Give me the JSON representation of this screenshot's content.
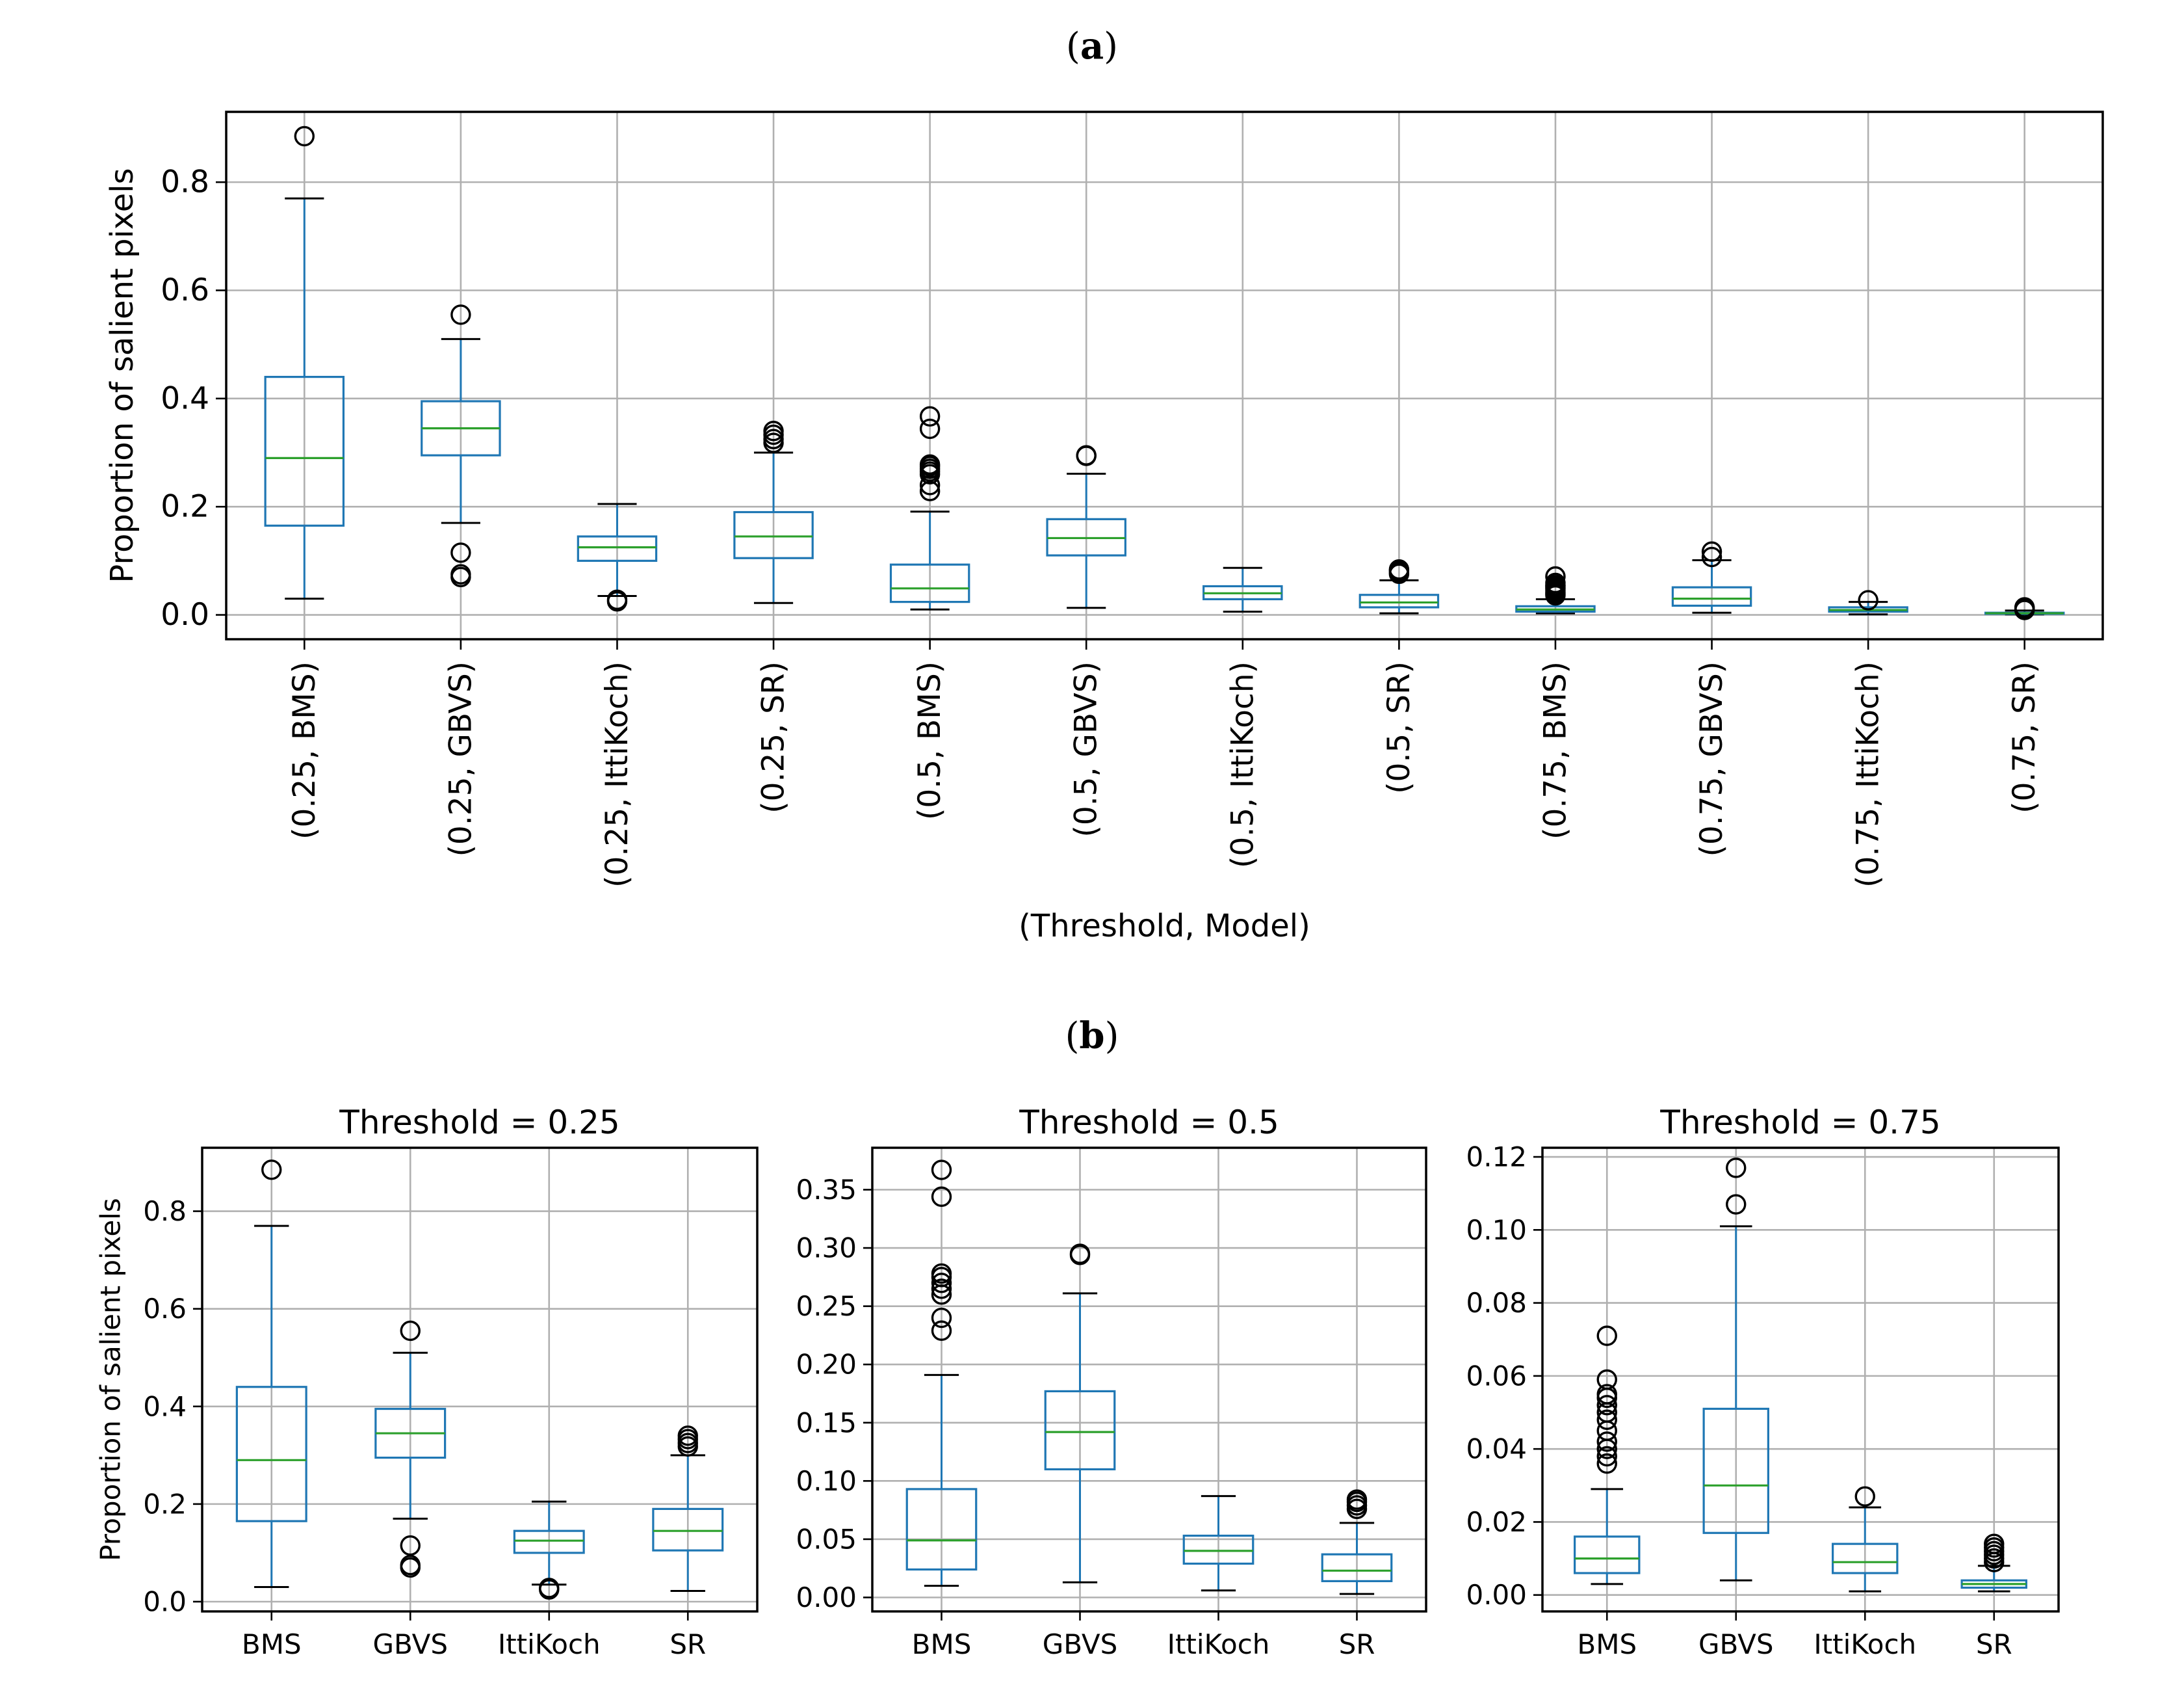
{
  "figure": {
    "panel_a_prefix": "(",
    "panel_a_letter": "a",
    "panel_a_suffix": ")",
    "panel_b_prefix": "(",
    "panel_b_letter": "b",
    "panel_b_suffix": ")"
  },
  "colors": {
    "box": "#1f77b4",
    "median": "#2ca02c",
    "grid": "#b0b0b0",
    "axis": "#000000"
  },
  "chart_data": [
    {
      "type": "boxplot",
      "panel": "a",
      "title": "",
      "xlabel": "(Threshold, Model)",
      "ylabel": "Proportion of salient pixels",
      "ylim": [
        -0.045,
        0.93
      ],
      "yticks": [
        0.0,
        0.2,
        0.4,
        0.6,
        0.8
      ],
      "ytick_labels": [
        "0.0",
        "0.2",
        "0.4",
        "0.6",
        "0.8"
      ],
      "grid": true,
      "categories": [
        "(0.25, BMS)",
        "(0.25, GBVS)",
        "(0.25, IttiKoch)",
        "(0.25, SR)",
        "(0.5, BMS)",
        "(0.5, GBVS)",
        "(0.5, IttiKoch)",
        "(0.5, SR)",
        "(0.75, BMS)",
        "(0.75, GBVS)",
        "(0.75, IttiKoch)",
        "(0.75, SR)"
      ],
      "boxes": [
        {
          "whislo": 0.03,
          "q1": 0.165,
          "med": 0.29,
          "q3": 0.44,
          "whishi": 0.77,
          "fliers": [
            0.885
          ]
        },
        {
          "whislo": 0.17,
          "q1": 0.295,
          "med": 0.345,
          "q3": 0.395,
          "whishi": 0.51,
          "fliers": [
            0.555,
            0.115,
            0.07,
            0.075
          ]
        },
        {
          "whislo": 0.035,
          "q1": 0.1,
          "med": 0.125,
          "q3": 0.145,
          "whishi": 0.205,
          "fliers": [
            0.025,
            0.028
          ]
        },
        {
          "whislo": 0.022,
          "q1": 0.105,
          "med": 0.145,
          "q3": 0.19,
          "whishi": 0.3,
          "fliers": [
            0.318,
            0.325,
            0.333,
            0.34
          ]
        },
        {
          "whislo": 0.01,
          "q1": 0.024,
          "med": 0.049,
          "q3": 0.093,
          "whishi": 0.191,
          "fliers": [
            0.229,
            0.24,
            0.26,
            0.265,
            0.27,
            0.275,
            0.278,
            0.344,
            0.367
          ]
        },
        {
          "whislo": 0.013,
          "q1": 0.11,
          "med": 0.142,
          "q3": 0.177,
          "whishi": 0.261,
          "fliers": [
            0.294,
            0.295
          ]
        },
        {
          "whislo": 0.006,
          "q1": 0.029,
          "med": 0.04,
          "q3": 0.053,
          "whishi": 0.087,
          "fliers": []
        },
        {
          "whislo": 0.003,
          "q1": 0.014,
          "med": 0.023,
          "q3": 0.037,
          "whishi": 0.064,
          "fliers": [
            0.076,
            0.079,
            0.082,
            0.084
          ]
        },
        {
          "whislo": 0.003,
          "q1": 0.006,
          "med": 0.01,
          "q3": 0.016,
          "whishi": 0.029,
          "fliers": [
            0.036,
            0.038,
            0.04,
            0.042,
            0.045,
            0.048,
            0.05,
            0.052,
            0.054,
            0.055,
            0.059,
            0.071
          ]
        },
        {
          "whislo": 0.004,
          "q1": 0.017,
          "med": 0.03,
          "q3": 0.051,
          "whishi": 0.101,
          "fliers": [
            0.107,
            0.117
          ]
        },
        {
          "whislo": 0.001,
          "q1": 0.006,
          "med": 0.009,
          "q3": 0.014,
          "whishi": 0.024,
          "fliers": [
            0.027
          ]
        },
        {
          "whislo": 0.001,
          "q1": 0.002,
          "med": 0.003,
          "q3": 0.004,
          "whishi": 0.008,
          "fliers": [
            0.009,
            0.01,
            0.011,
            0.012,
            0.013,
            0.014
          ]
        }
      ]
    },
    {
      "type": "boxplot",
      "panel": "b",
      "title": "Threshold = 0.25",
      "xlabel": "",
      "ylabel": "Proportion of salient pixels",
      "ylim": [
        -0.02,
        0.93
      ],
      "yticks": [
        0.0,
        0.2,
        0.4,
        0.6,
        0.8
      ],
      "ytick_labels": [
        "0.0",
        "0.2",
        "0.4",
        "0.6",
        "0.8"
      ],
      "grid": true,
      "categories": [
        "BMS",
        "GBVS",
        "IttiKoch",
        "SR"
      ],
      "boxes": [
        {
          "whislo": 0.03,
          "q1": 0.165,
          "med": 0.29,
          "q3": 0.44,
          "whishi": 0.77,
          "fliers": [
            0.885
          ]
        },
        {
          "whislo": 0.17,
          "q1": 0.295,
          "med": 0.345,
          "q3": 0.395,
          "whishi": 0.51,
          "fliers": [
            0.555,
            0.115,
            0.07,
            0.075
          ]
        },
        {
          "whislo": 0.035,
          "q1": 0.1,
          "med": 0.125,
          "q3": 0.145,
          "whishi": 0.205,
          "fliers": [
            0.025,
            0.028
          ]
        },
        {
          "whislo": 0.022,
          "q1": 0.105,
          "med": 0.145,
          "q3": 0.19,
          "whishi": 0.3,
          "fliers": [
            0.318,
            0.325,
            0.333,
            0.34
          ]
        }
      ]
    },
    {
      "type": "boxplot",
      "panel": "b",
      "title": "Threshold = 0.5",
      "xlabel": "",
      "ylabel": "",
      "ylim": [
        -0.012,
        0.386
      ],
      "yticks": [
        0.0,
        0.05,
        0.1,
        0.15,
        0.2,
        0.25,
        0.3,
        0.35
      ],
      "ytick_labels": [
        "0.00",
        "0.05",
        "0.10",
        "0.15",
        "0.20",
        "0.25",
        "0.30",
        "0.35"
      ],
      "grid": true,
      "categories": [
        "BMS",
        "GBVS",
        "IttiKoch",
        "SR"
      ],
      "boxes": [
        {
          "whislo": 0.01,
          "q1": 0.024,
          "med": 0.049,
          "q3": 0.093,
          "whishi": 0.191,
          "fliers": [
            0.229,
            0.24,
            0.26,
            0.265,
            0.27,
            0.275,
            0.278,
            0.344,
            0.367
          ]
        },
        {
          "whislo": 0.013,
          "q1": 0.11,
          "med": 0.142,
          "q3": 0.177,
          "whishi": 0.261,
          "fliers": [
            0.294,
            0.295
          ]
        },
        {
          "whislo": 0.006,
          "q1": 0.029,
          "med": 0.04,
          "q3": 0.053,
          "whishi": 0.087,
          "fliers": []
        },
        {
          "whislo": 0.003,
          "q1": 0.014,
          "med": 0.023,
          "q3": 0.037,
          "whishi": 0.064,
          "fliers": [
            0.076,
            0.079,
            0.082,
            0.084
          ]
        }
      ]
    },
    {
      "type": "boxplot",
      "panel": "b",
      "title": "Threshold = 0.75",
      "xlabel": "",
      "ylabel": "",
      "ylim": [
        -0.0045,
        0.1225
      ],
      "yticks": [
        0.0,
        0.02,
        0.04,
        0.06,
        0.08,
        0.1,
        0.12
      ],
      "ytick_labels": [
        "0.00",
        "0.02",
        "0.04",
        "0.06",
        "0.08",
        "0.10",
        "0.12"
      ],
      "grid": true,
      "categories": [
        "BMS",
        "GBVS",
        "IttiKoch",
        "SR"
      ],
      "boxes": [
        {
          "whislo": 0.003,
          "q1": 0.006,
          "med": 0.01,
          "q3": 0.016,
          "whishi": 0.029,
          "fliers": [
            0.036,
            0.038,
            0.04,
            0.042,
            0.045,
            0.048,
            0.05,
            0.052,
            0.054,
            0.055,
            0.059,
            0.071
          ]
        },
        {
          "whislo": 0.004,
          "q1": 0.017,
          "med": 0.03,
          "q3": 0.051,
          "whishi": 0.101,
          "fliers": [
            0.107,
            0.117
          ]
        },
        {
          "whislo": 0.001,
          "q1": 0.006,
          "med": 0.009,
          "q3": 0.014,
          "whishi": 0.024,
          "fliers": [
            0.027
          ]
        },
        {
          "whislo": 0.001,
          "q1": 0.002,
          "med": 0.003,
          "q3": 0.004,
          "whishi": 0.008,
          "fliers": [
            0.009,
            0.01,
            0.011,
            0.012,
            0.013,
            0.014
          ]
        }
      ]
    }
  ]
}
